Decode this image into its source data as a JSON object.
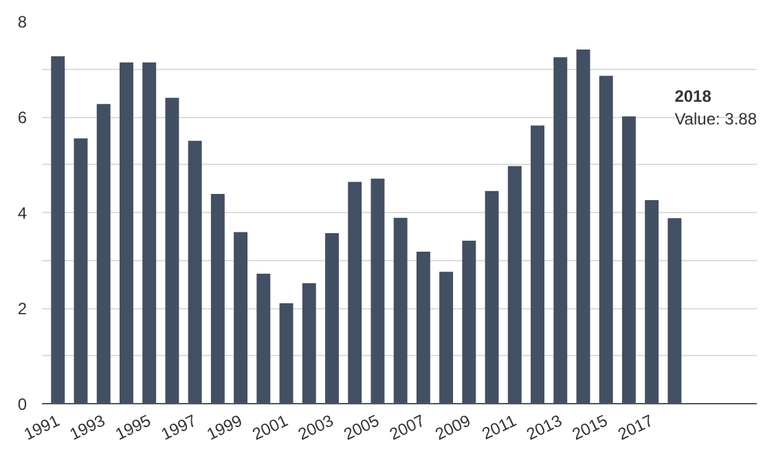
{
  "chart_data": {
    "type": "bar",
    "categories": [
      "1991",
      null,
      "1993",
      null,
      "1995",
      null,
      "1997",
      null,
      "1999",
      null,
      "2001",
      null,
      "2003",
      null,
      "2005",
      null,
      "2007",
      null,
      "2009",
      null,
      "2011",
      null,
      "2013",
      null,
      "2015",
      null,
      "2017",
      null
    ],
    "series": [
      {
        "color": "#434f63",
        "values": [
          7.27,
          5.55,
          6.27,
          7.14,
          7.14,
          6.4,
          5.5,
          4.39,
          3.59,
          2.72,
          2.1,
          2.52,
          3.57,
          4.64,
          4.71,
          3.89,
          3.18,
          2.76,
          3.41,
          4.45,
          4.97,
          5.82,
          7.25,
          7.41,
          6.86,
          6.01,
          4.26,
          3.88
        ]
      }
    ],
    "ylim": [
      0,
      8
    ],
    "yticks": [
      0,
      {
        "value": 1,
        "label": null
      },
      2,
      {
        "value": 3,
        "label": null
      },
      4,
      {
        "value": 5,
        "label": null
      },
      6,
      {
        "value": 7,
        "label": null
      },
      8
    ],
    "grid": "y",
    "annotations": [
      "2018\nValue: 3.88"
    ]
  }
}
